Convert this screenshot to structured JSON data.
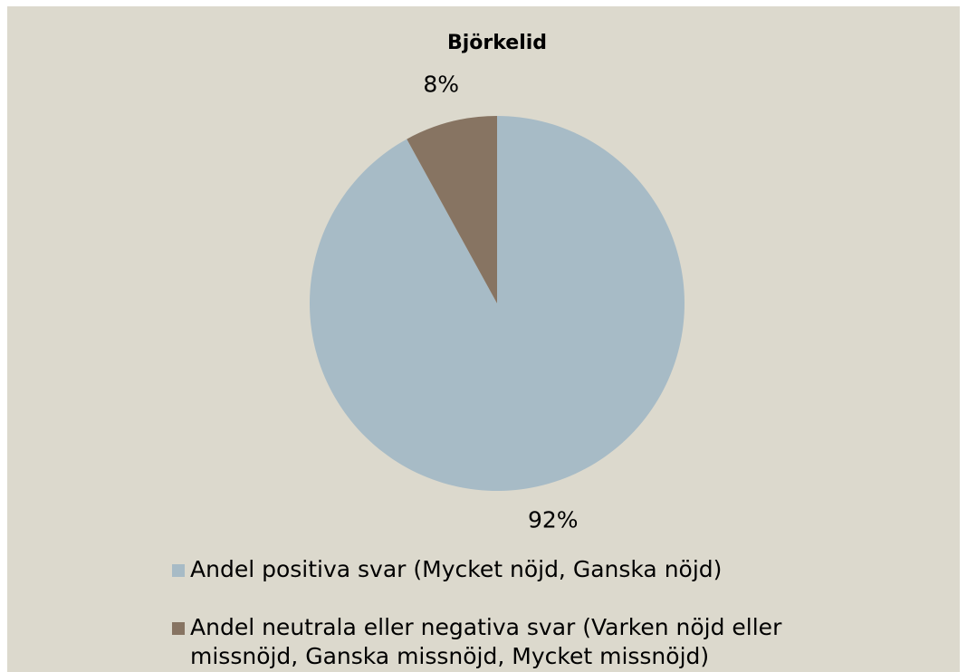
{
  "chart_data": {
    "type": "pie",
    "title": "Björkelid",
    "categories": [
      "Andel positiva svar (Mycket nöjd, Ganska nöjd)",
      "Andel neutrala eller negativa svar (Varken nöjd eller missnöjd, Ganska missnöjd, Mycket missnöjd)"
    ],
    "values": [
      92,
      8
    ],
    "value_labels": [
      "92%",
      "8%"
    ],
    "colors": [
      "#a7bbc6",
      "#877462"
    ]
  }
}
